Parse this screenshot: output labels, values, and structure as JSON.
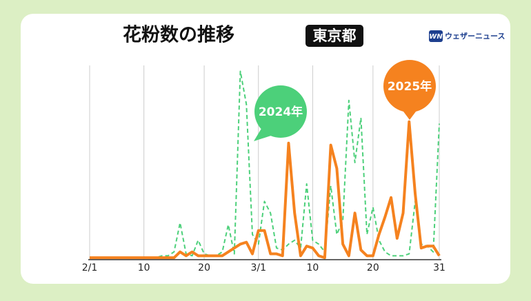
{
  "chart_data": {
    "type": "line",
    "title": "花粉数の推移",
    "region": "東京都",
    "brand_mark": "WN",
    "brand": "ウェザーニュース",
    "categories": [
      "2/1",
      null,
      null,
      null,
      null,
      null,
      null,
      null,
      null,
      "10",
      null,
      null,
      null,
      null,
      null,
      null,
      null,
      null,
      null,
      "20",
      null,
      null,
      null,
      null,
      null,
      null,
      null,
      null,
      "3/1",
      null,
      null,
      null,
      null,
      null,
      null,
      null,
      null,
      "10",
      null,
      null,
      null,
      null,
      null,
      null,
      null,
      null,
      null,
      "20",
      null,
      null,
      null,
      null,
      null,
      null,
      null,
      null,
      null,
      null,
      "31"
    ],
    "ylim": [
      0,
      100
    ],
    "grid": true,
    "series": [
      {
        "name": "2024年",
        "color": "#4cd07a",
        "dash": true,
        "values": [
          1,
          1,
          1,
          1,
          1,
          1,
          1,
          1,
          1,
          1,
          1,
          1,
          2,
          2,
          4,
          19,
          3,
          2,
          10,
          3,
          2,
          2,
          4,
          18,
          3,
          97,
          80,
          13,
          8,
          30,
          24,
          6,
          5,
          8,
          10,
          6,
          39,
          10,
          8,
          4,
          38,
          13,
          20,
          82,
          50,
          73,
          13,
          27,
          10,
          4,
          2,
          2,
          2,
          3,
          30,
          8,
          7,
          4,
          70
        ]
      },
      {
        "name": "2025年",
        "color": "#f5821f",
        "dash": false,
        "values": [
          1,
          1,
          1,
          1,
          1,
          1,
          1,
          1,
          1,
          1,
          1,
          1,
          1,
          1,
          1,
          4,
          2,
          4,
          2,
          2,
          2,
          2,
          2,
          4,
          6,
          8,
          9,
          3,
          15,
          15,
          3,
          3,
          2,
          60,
          24,
          2,
          7,
          6,
          2,
          1,
          59,
          47,
          8,
          2,
          24,
          5,
          2,
          2,
          13,
          22,
          32,
          11,
          24,
          71,
          34,
          6,
          7,
          7,
          2
        ]
      }
    ]
  }
}
